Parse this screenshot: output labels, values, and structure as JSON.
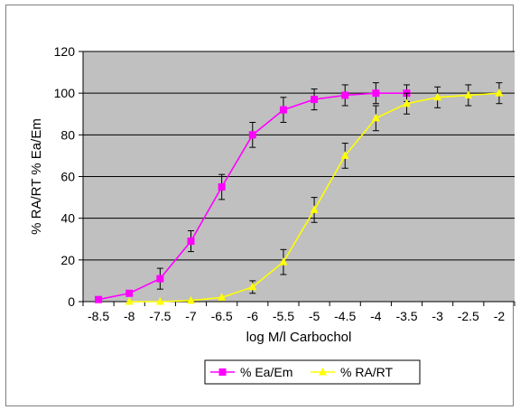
{
  "chart_data": {
    "type": "line",
    "xlabel": "log M/l Carbochol",
    "ylabel": "% RA/RT % Ea/Em",
    "ylim": [
      0,
      120
    ],
    "y_ticks": [
      "0",
      "20",
      "40",
      "60",
      "80",
      "100",
      "120"
    ],
    "categories": [
      "-8.5",
      "-8",
      "-7.5",
      "-7",
      "-6.5",
      "-6",
      "-5.5",
      "-5",
      "-4.5",
      "-4",
      "-3.5",
      "-3",
      "-2.5",
      "-2"
    ],
    "plot_background": "#c0c0c0",
    "grid": true,
    "legend_position": "bottom",
    "series": [
      {
        "name": "% Ea/Em",
        "color": "#ff00ff",
        "marker": "square",
        "values": [
          1,
          4,
          11,
          29,
          55,
          80,
          92,
          97,
          99,
          100,
          100,
          null,
          null,
          null
        ],
        "errors": [
          0,
          0,
          5,
          5,
          6,
          6,
          6,
          5,
          5,
          5,
          4,
          null,
          null,
          null
        ]
      },
      {
        "name": "% RA/RT",
        "color": "#ffff00",
        "marker": "triangle",
        "values": [
          null,
          0,
          0,
          0.5,
          2,
          7,
          19,
          44,
          70,
          88,
          95,
          98,
          99,
          100
        ],
        "errors": [
          null,
          0,
          0,
          0,
          0,
          3,
          6,
          6,
          6,
          6,
          5,
          5,
          5,
          5
        ]
      }
    ]
  }
}
